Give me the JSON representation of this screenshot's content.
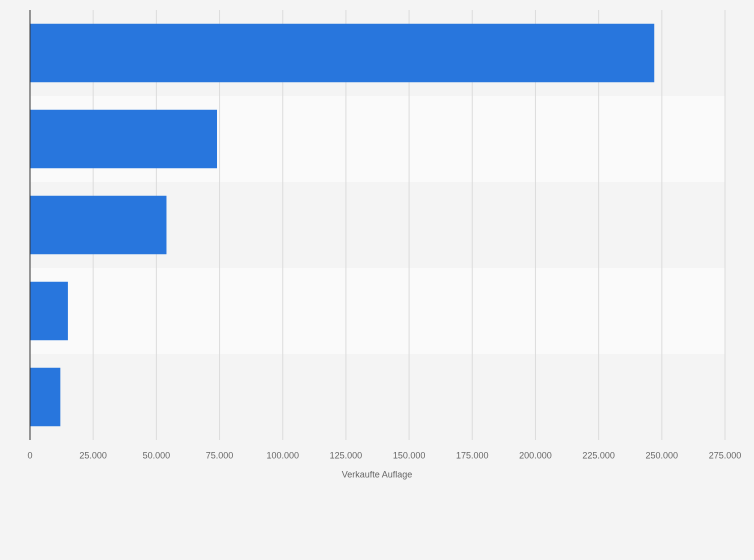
{
  "chart_data": {
    "type": "bar",
    "orientation": "horizontal",
    "x_label": "Verkaufte Auflage",
    "categories": [
      null,
      null,
      null,
      null,
      null
    ],
    "values": [
      247000,
      74000,
      54000,
      15000,
      12000
    ],
    "color": "#2876dd",
    "xlim": [
      0,
      275000
    ],
    "xticks": [
      0,
      {
        "value": 25000,
        "label": "25.000"
      },
      {
        "value": 50000,
        "label": "50.000"
      },
      {
        "value": 75000,
        "label": "75.000"
      },
      {
        "value": 100000,
        "label": "100.000"
      },
      {
        "value": 125000,
        "label": "125.000"
      },
      {
        "value": 150000,
        "label": "150.000"
      },
      {
        "value": 175000,
        "label": "175.000"
      },
      {
        "value": 200000,
        "label": "200.000"
      },
      {
        "value": 225000,
        "label": "225.000"
      },
      {
        "value": 250000,
        "label": "250.000"
      },
      {
        "value": 275000,
        "label": "275.000"
      }
    ],
    "grid": true
  }
}
